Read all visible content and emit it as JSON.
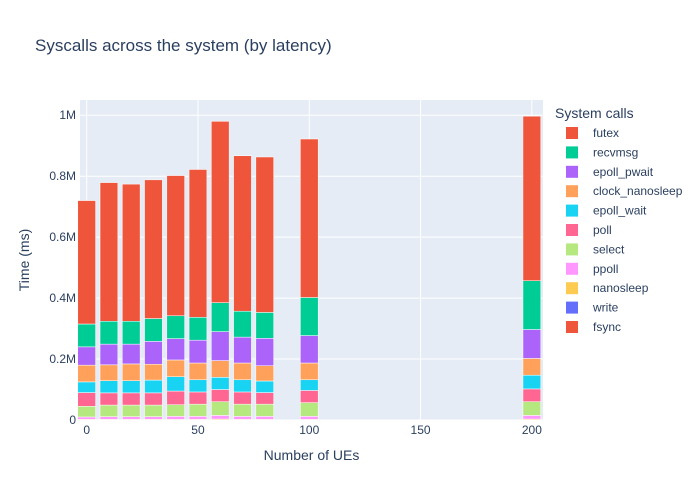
{
  "chart_data": {
    "type": "bar",
    "stacked": true,
    "title": "Syscalls across the system (by latency)",
    "xlabel": "Number of UEs",
    "ylabel": "Time (ms)",
    "xlim": [
      -3,
      205
    ],
    "ylim": [
      0,
      1050000
    ],
    "x_ticks": [
      0,
      50,
      100,
      150,
      200
    ],
    "y_ticks": [
      0,
      200000,
      400000,
      600000,
      800000,
      1000000
    ],
    "y_tick_labels": [
      "0",
      "0.2M",
      "0.4M",
      "0.6M",
      "0.8M",
      "1M"
    ],
    "grid": true,
    "background": "#e5ecf6",
    "legend_title": "System calls",
    "legend_position": "right",
    "x": [
      0,
      10,
      20,
      30,
      40,
      50,
      60,
      70,
      80,
      100,
      200
    ],
    "series": [
      {
        "name": "fsync",
        "color": "#ef553b",
        "values": [
          0,
          0,
          0,
          0,
          0,
          0,
          0,
          0,
          0,
          0,
          0
        ]
      },
      {
        "name": "write",
        "color": "#636efa",
        "values": [
          0,
          0,
          0,
          0,
          0,
          0,
          0,
          0,
          0,
          0,
          0
        ]
      },
      {
        "name": "nanosleep",
        "color": "#fecb52",
        "values": [
          2000,
          2000,
          2000,
          2000,
          2000,
          2000,
          3000,
          2000,
          2000,
          2000,
          3000
        ]
      },
      {
        "name": "ppoll",
        "color": "#ff97ff",
        "values": [
          8000,
          9000,
          9000,
          9000,
          10000,
          10000,
          12000,
          10000,
          10000,
          10000,
          12000
        ]
      },
      {
        "name": "select",
        "color": "#b6e880",
        "values": [
          35000,
          38000,
          38000,
          38000,
          38000,
          40000,
          45000,
          40000,
          40000,
          45000,
          45000
        ]
      },
      {
        "name": "poll",
        "color": "#ff6692",
        "values": [
          45000,
          40000,
          40000,
          40000,
          45000,
          40000,
          40000,
          40000,
          38000,
          40000,
          42000
        ]
      },
      {
        "name": "epoll_wait",
        "color": "#19d3f3",
        "values": [
          35000,
          40000,
          40000,
          42000,
          47000,
          40000,
          40000,
          40000,
          38000,
          35000,
          45000
        ]
      },
      {
        "name": "clock_nanosleep",
        "color": "#ffa15a",
        "values": [
          55000,
          52000,
          55000,
          52000,
          55000,
          55000,
          55000,
          55000,
          50000,
          55000,
          55000
        ]
      },
      {
        "name": "epoll_pwait",
        "color": "#ab63fa",
        "values": [
          60000,
          68000,
          65000,
          75000,
          70000,
          75000,
          95000,
          85000,
          90000,
          90000,
          95000
        ]
      },
      {
        "name": "recvmsg",
        "color": "#00cc96",
        "values": [
          75000,
          75000,
          75000,
          75000,
          75000,
          75000,
          95000,
          85000,
          85000,
          125000,
          160000
        ]
      },
      {
        "name": "futex",
        "color": "#ef553b",
        "values": [
          405000,
          455000,
          450000,
          455000,
          460000,
          485000,
          595000,
          510000,
          510000,
          520000,
          540000
        ]
      }
    ],
    "legend_order": [
      "futex",
      "recvmsg",
      "epoll_pwait",
      "clock_nanosleep",
      "epoll_wait",
      "poll",
      "select",
      "ppoll",
      "nanosleep",
      "write",
      "fsync"
    ]
  }
}
